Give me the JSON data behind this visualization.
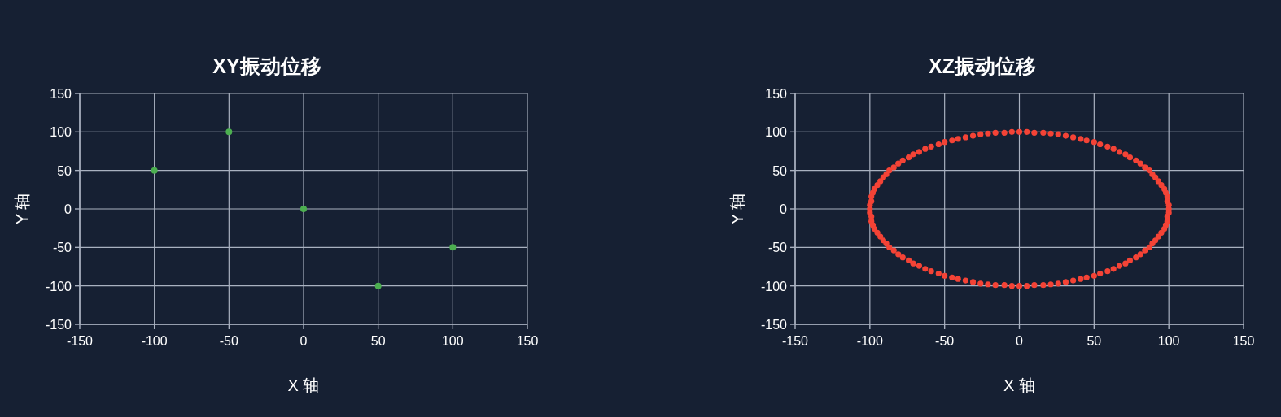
{
  "chart_data": [
    {
      "type": "scatter",
      "title": "XY振动位移",
      "xlabel": "X 轴",
      "ylabel": "Y 轴",
      "x": [
        -100,
        -50,
        0,
        50,
        100
      ],
      "values": [
        50,
        100,
        0,
        -100,
        -50
      ],
      "color": "#4caf50",
      "marker": "circle",
      "xlim": [
        -150,
        150
      ],
      "ylim": [
        -150,
        150
      ],
      "xticks": [
        -150,
        -100,
        -50,
        0,
        50,
        100,
        150
      ],
      "yticks": [
        -150,
        -100,
        -50,
        0,
        50,
        100,
        150
      ],
      "grid": true
    },
    {
      "type": "scatter",
      "title": "XZ振动位移",
      "xlabel": "X 轴",
      "ylabel": "Y 轴",
      "x": [
        100,
        100,
        99,
        99,
        98,
        97,
        95,
        93,
        91,
        89,
        87,
        84,
        81,
        78,
        74,
        71,
        67,
        63,
        59,
        54,
        50,
        45,
        41,
        36,
        31,
        26,
        21,
        16,
        10,
        5,
        0,
        -5,
        -10,
        -16,
        -21,
        -26,
        -31,
        -36,
        -41,
        -45,
        -50,
        -54,
        -59,
        -63,
        -67,
        -71,
        -74,
        -78,
        -81,
        -84,
        -87,
        -89,
        -91,
        -93,
        -95,
        -97,
        -98,
        -99,
        -99,
        -100,
        -100,
        -100,
        -99,
        -99,
        -98,
        -97,
        -95,
        -93,
        -91,
        -89,
        -87,
        -84,
        -81,
        -78,
        -74,
        -71,
        -67,
        -63,
        -59,
        -54,
        -50,
        -45,
        -41,
        -36,
        -31,
        -26,
        -21,
        -16,
        -10,
        -5,
        0,
        5,
        10,
        16,
        21,
        26,
        31,
        36,
        41,
        45,
        50,
        54,
        59,
        63,
        67,
        71,
        74,
        78,
        81,
        84,
        87,
        89,
        91,
        93,
        95,
        97,
        98,
        99,
        99,
        100
      ],
      "values": [
        0,
        5,
        10,
        16,
        21,
        26,
        31,
        36,
        41,
        45,
        50,
        54,
        59,
        63,
        67,
        71,
        74,
        78,
        81,
        84,
        87,
        89,
        91,
        93,
        95,
        97,
        98,
        99,
        99,
        100,
        100,
        100,
        99,
        99,
        98,
        97,
        95,
        93,
        91,
        89,
        87,
        84,
        81,
        78,
        74,
        71,
        67,
        63,
        59,
        54,
        50,
        45,
        41,
        36,
        31,
        26,
        21,
        16,
        10,
        5,
        0,
        -5,
        -10,
        -16,
        -21,
        -26,
        -31,
        -36,
        -41,
        -45,
        -50,
        -54,
        -59,
        -63,
        -67,
        -71,
        -74,
        -78,
        -81,
        -84,
        -87,
        -89,
        -91,
        -93,
        -95,
        -97,
        -98,
        -99,
        -99,
        -100,
        -100,
        -100,
        -99,
        -99,
        -98,
        -97,
        -95,
        -93,
        -91,
        -89,
        -87,
        -84,
        -81,
        -78,
        -74,
        -71,
        -67,
        -63,
        -59,
        -54,
        -50,
        -45,
        -41,
        -36,
        -31,
        -26,
        -21,
        -16,
        -10,
        -5
      ],
      "color": "#f44336",
      "marker": "circle",
      "xlim": [
        -150,
        150
      ],
      "ylim": [
        -150,
        150
      ],
      "xticks": [
        -150,
        -100,
        -50,
        0,
        50,
        100,
        150
      ],
      "yticks": [
        -150,
        -100,
        -50,
        0,
        50,
        100,
        150
      ],
      "grid": true
    }
  ]
}
